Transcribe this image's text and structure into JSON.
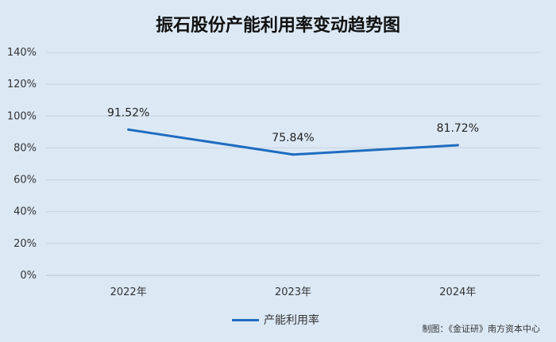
{
  "chart_data": {
    "type": "line",
    "title": "振石股份产能利用率变动趋势图",
    "categories": [
      "2022年",
      "2023年",
      "2024年"
    ],
    "series": [
      {
        "name": "产能利用率",
        "values": [
          91.52,
          75.84,
          81.72
        ],
        "color": "#1f6cc0"
      }
    ],
    "data_labels": [
      "91.52%",
      "75.84%",
      "81.72%"
    ],
    "y_ticks": [
      "0%",
      "20%",
      "40%",
      "60%",
      "80%",
      "100%",
      "120%",
      "140%"
    ],
    "ylim": [
      0,
      140
    ],
    "grid": true,
    "legend_position": "bottom",
    "xlabel": "",
    "ylabel": ""
  },
  "footnote": "制图：《金证研》南方资本中心"
}
